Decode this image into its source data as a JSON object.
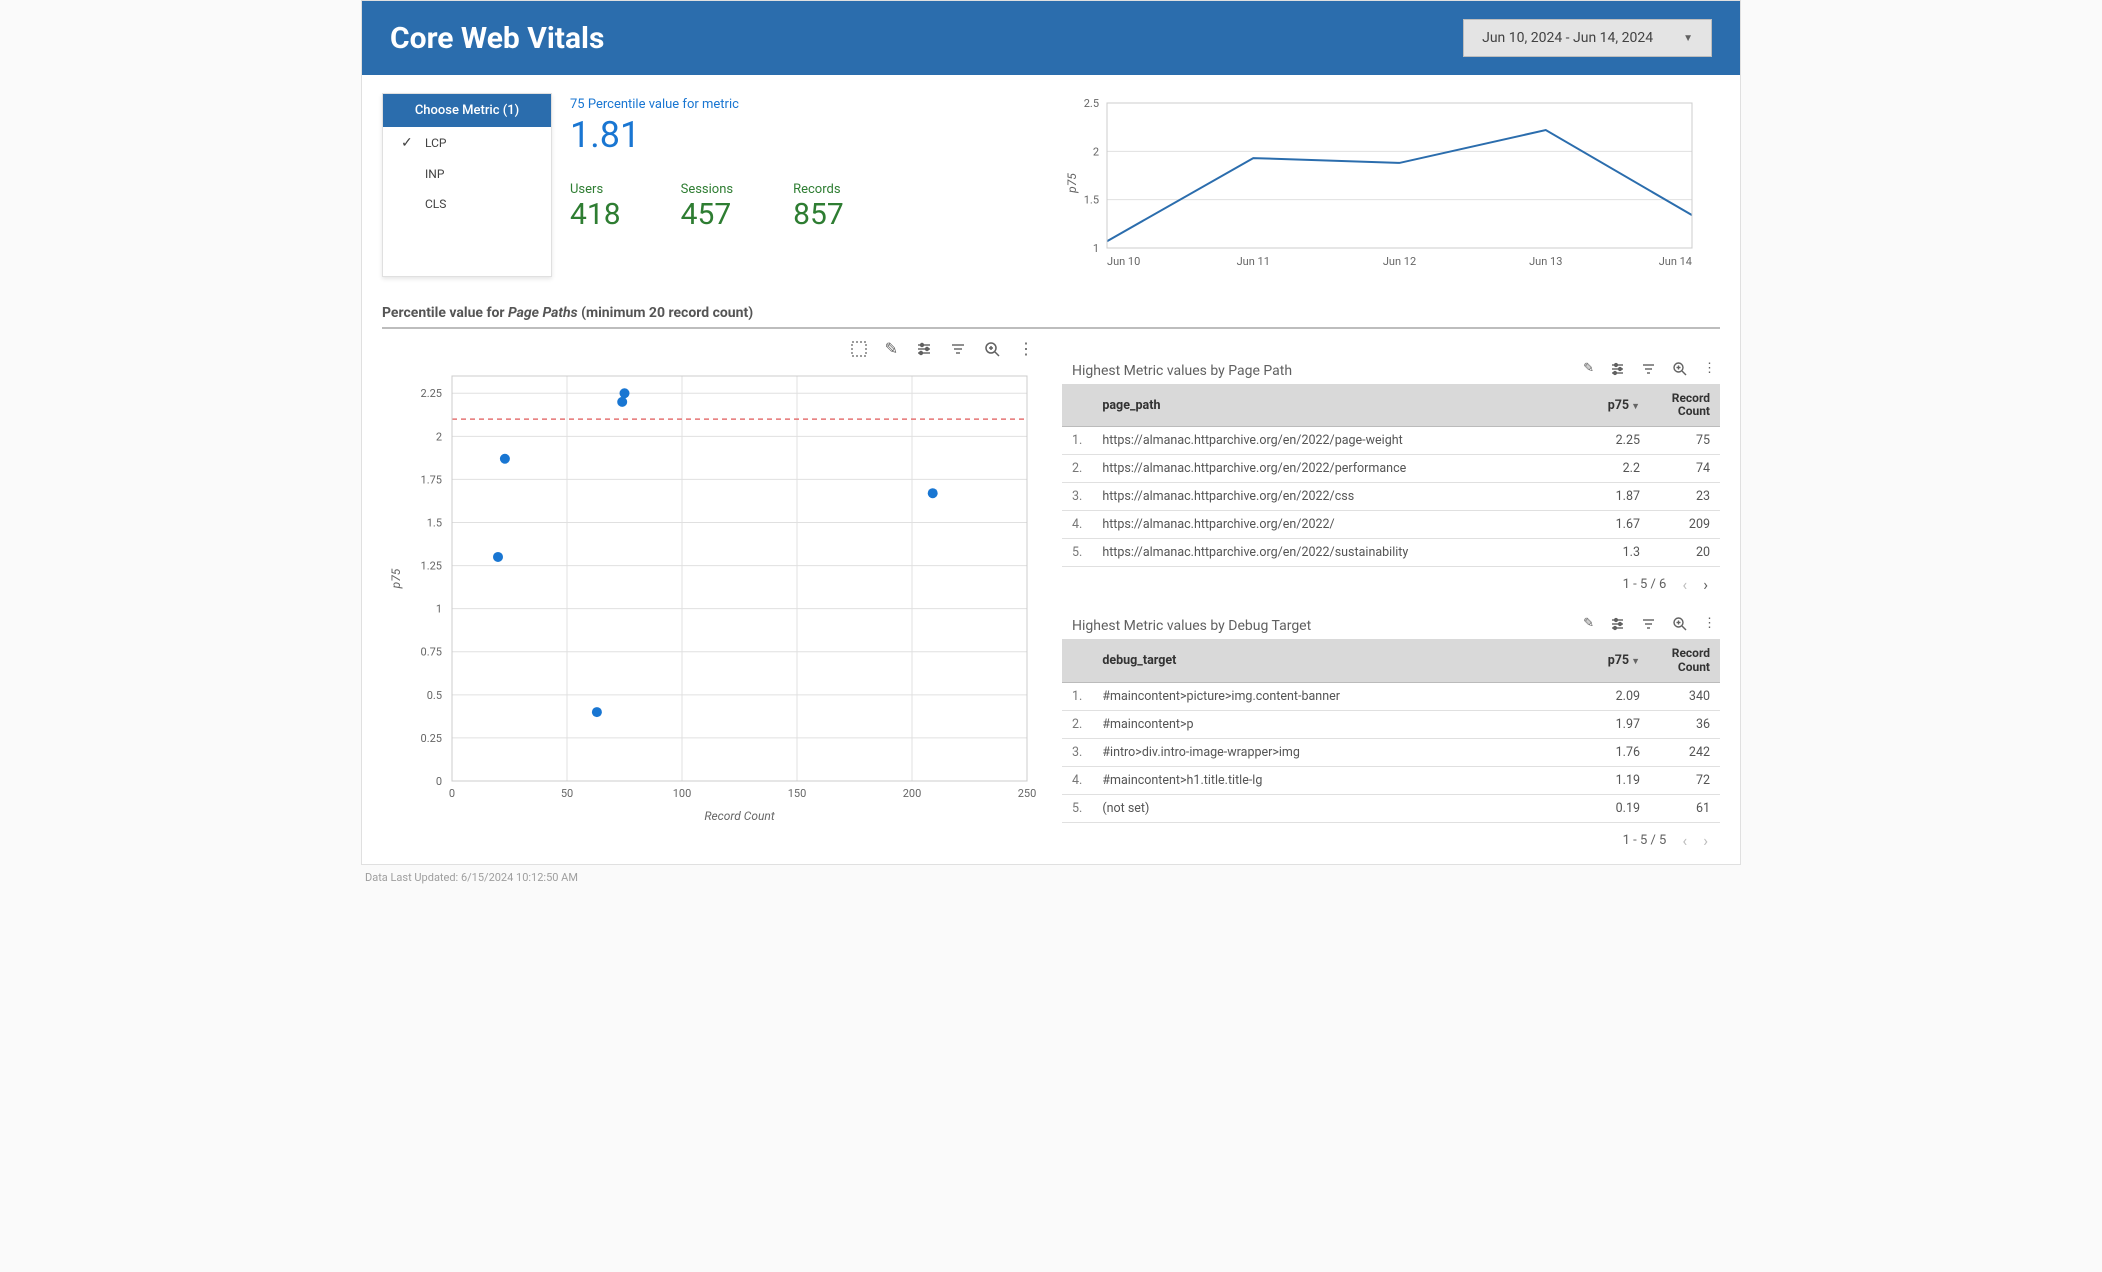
{
  "header": {
    "title": "Core Web Vitals",
    "date_range": "Jun 10, 2024 - Jun 14, 2024"
  },
  "metric_selector": {
    "title": "Choose Metric (1)",
    "options": [
      {
        "label": "LCP",
        "selected": true
      },
      {
        "label": "INP",
        "selected": false
      },
      {
        "label": "CLS",
        "selected": false
      }
    ]
  },
  "summary": {
    "p75_label": "75 Percentile value for metric",
    "p75_value": "1.81",
    "stats": [
      {
        "label": "Users",
        "value": "418"
      },
      {
        "label": "Sessions",
        "value": "457"
      },
      {
        "label": "Records",
        "value": "857"
      }
    ]
  },
  "line_chart": {
    "y_axis_title": "p75",
    "x_labels": [
      "Jun 10",
      "Jun 11",
      "Jun 12",
      "Jun 13",
      "Jun 14"
    ],
    "y_ticks": [
      1,
      1.5,
      2,
      2.5
    ],
    "values": [
      1.07,
      1.93,
      1.88,
      2.22,
      1.34
    ],
    "line_color": "#2b6dad",
    "grid_color": "#e0e0e0",
    "background_color": "#ffffff",
    "ylim": [
      1,
      2.5
    ]
  },
  "scatter_section_title_prefix": "Percentile value for ",
  "scatter_section_title_em": "Page Paths",
  "scatter_section_title_suffix": " (minimum 20 record count)",
  "scatter_chart": {
    "x_axis_title": "Record Count",
    "y_axis_title": "p75",
    "x_ticks": [
      0,
      50,
      100,
      150,
      200,
      250
    ],
    "y_ticks": [
      0,
      0.25,
      0.5,
      0.75,
      1,
      1.25,
      1.5,
      1.75,
      2,
      2.25
    ],
    "xlim": [
      0,
      250
    ],
    "ylim": [
      0,
      2.35
    ],
    "reference_line_y": 2.1,
    "reference_line_color": "#e57373",
    "point_color": "#1976d2",
    "grid_color": "#e0e0e0",
    "points": [
      {
        "x": 75,
        "y": 2.25
      },
      {
        "x": 74,
        "y": 2.2
      },
      {
        "x": 23,
        "y": 1.87
      },
      {
        "x": 209,
        "y": 1.67
      },
      {
        "x": 20,
        "y": 1.3
      },
      {
        "x": 63,
        "y": 0.4
      }
    ]
  },
  "page_path_table": {
    "title": "Highest Metric values by Page Path",
    "columns": {
      "path": "page_path",
      "p75": "p75",
      "count_l1": "Record",
      "count_l2": "Count"
    },
    "rows": [
      {
        "idx": "1.",
        "path": "https://almanac.httparchive.org/en/2022/page-weight",
        "p75": "2.25",
        "count": "75"
      },
      {
        "idx": "2.",
        "path": "https://almanac.httparchive.org/en/2022/performance",
        "p75": "2.2",
        "count": "74"
      },
      {
        "idx": "3.",
        "path": "https://almanac.httparchive.org/en/2022/css",
        "p75": "1.87",
        "count": "23"
      },
      {
        "idx": "4.",
        "path": "https://almanac.httparchive.org/en/2022/",
        "p75": "1.67",
        "count": "209"
      },
      {
        "idx": "5.",
        "path": "https://almanac.httparchive.org/en/2022/sustainability",
        "p75": "1.3",
        "count": "20"
      }
    ],
    "pagination": "1 - 5 / 6"
  },
  "debug_target_table": {
    "title": "Highest Metric values by Debug Target",
    "columns": {
      "path": "debug_target",
      "p75": "p75",
      "count_l1": "Record",
      "count_l2": "Count"
    },
    "rows": [
      {
        "idx": "1.",
        "path": "#maincontent>picture>img.content-banner",
        "p75": "2.09",
        "count": "340"
      },
      {
        "idx": "2.",
        "path": "#maincontent>p",
        "p75": "1.97",
        "count": "36"
      },
      {
        "idx": "3.",
        "path": "#intro>div.intro-image-wrapper>img",
        "p75": "1.76",
        "count": "242"
      },
      {
        "idx": "4.",
        "path": "#maincontent>h1.title.title-lg",
        "p75": "1.19",
        "count": "72"
      },
      {
        "idx": "5.",
        "path": "(not set)",
        "p75": "0.19",
        "count": "61"
      }
    ],
    "pagination": "1 - 5 / 5"
  },
  "footer": "Data Last Updated: 6/15/2024 10:12:50 AM"
}
